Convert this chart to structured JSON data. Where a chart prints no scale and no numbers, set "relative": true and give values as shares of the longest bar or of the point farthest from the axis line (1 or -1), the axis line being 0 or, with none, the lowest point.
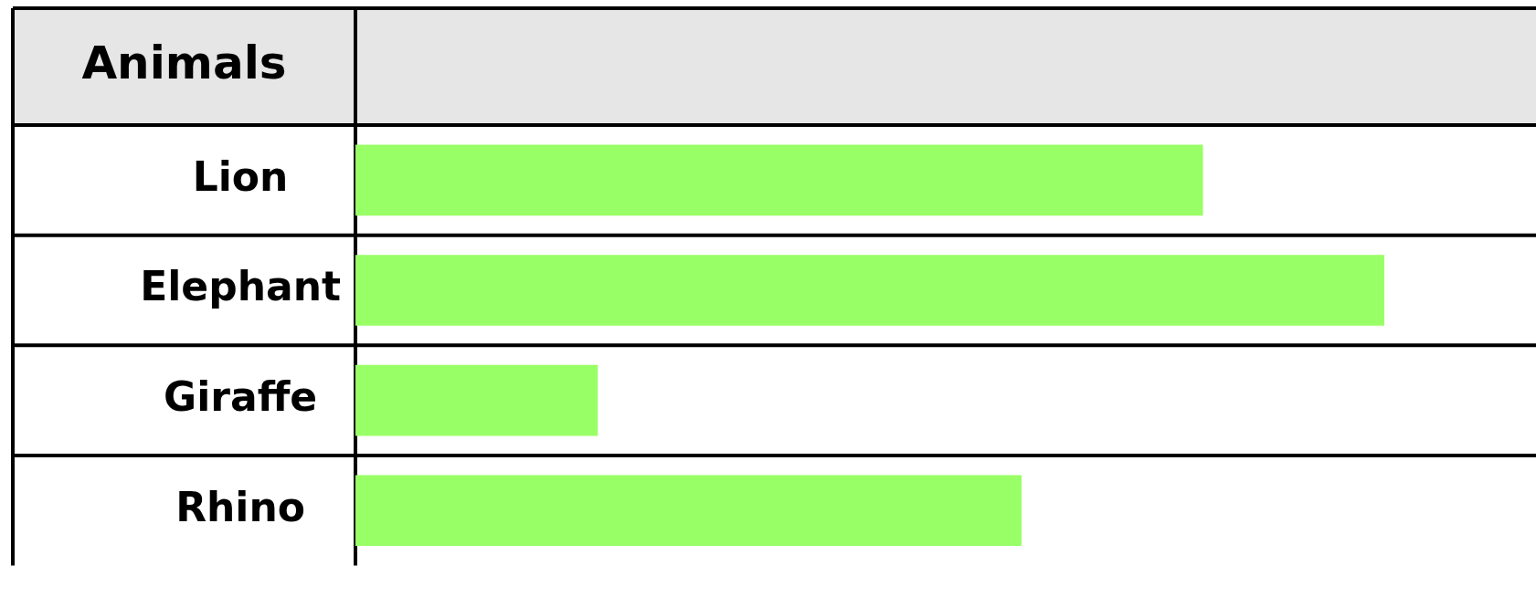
{
  "chart_data": {
    "type": "bar",
    "orientation": "horizontal",
    "relative": true,
    "ylabel": "Animals",
    "categories": [
      "Lion",
      "Elephant",
      "Giraffe",
      "Rhino"
    ],
    "values": [
      0.8235,
      1,
      0.2353,
      0.6471
    ],
    "color": "#99ff66",
    "legend": false
  }
}
